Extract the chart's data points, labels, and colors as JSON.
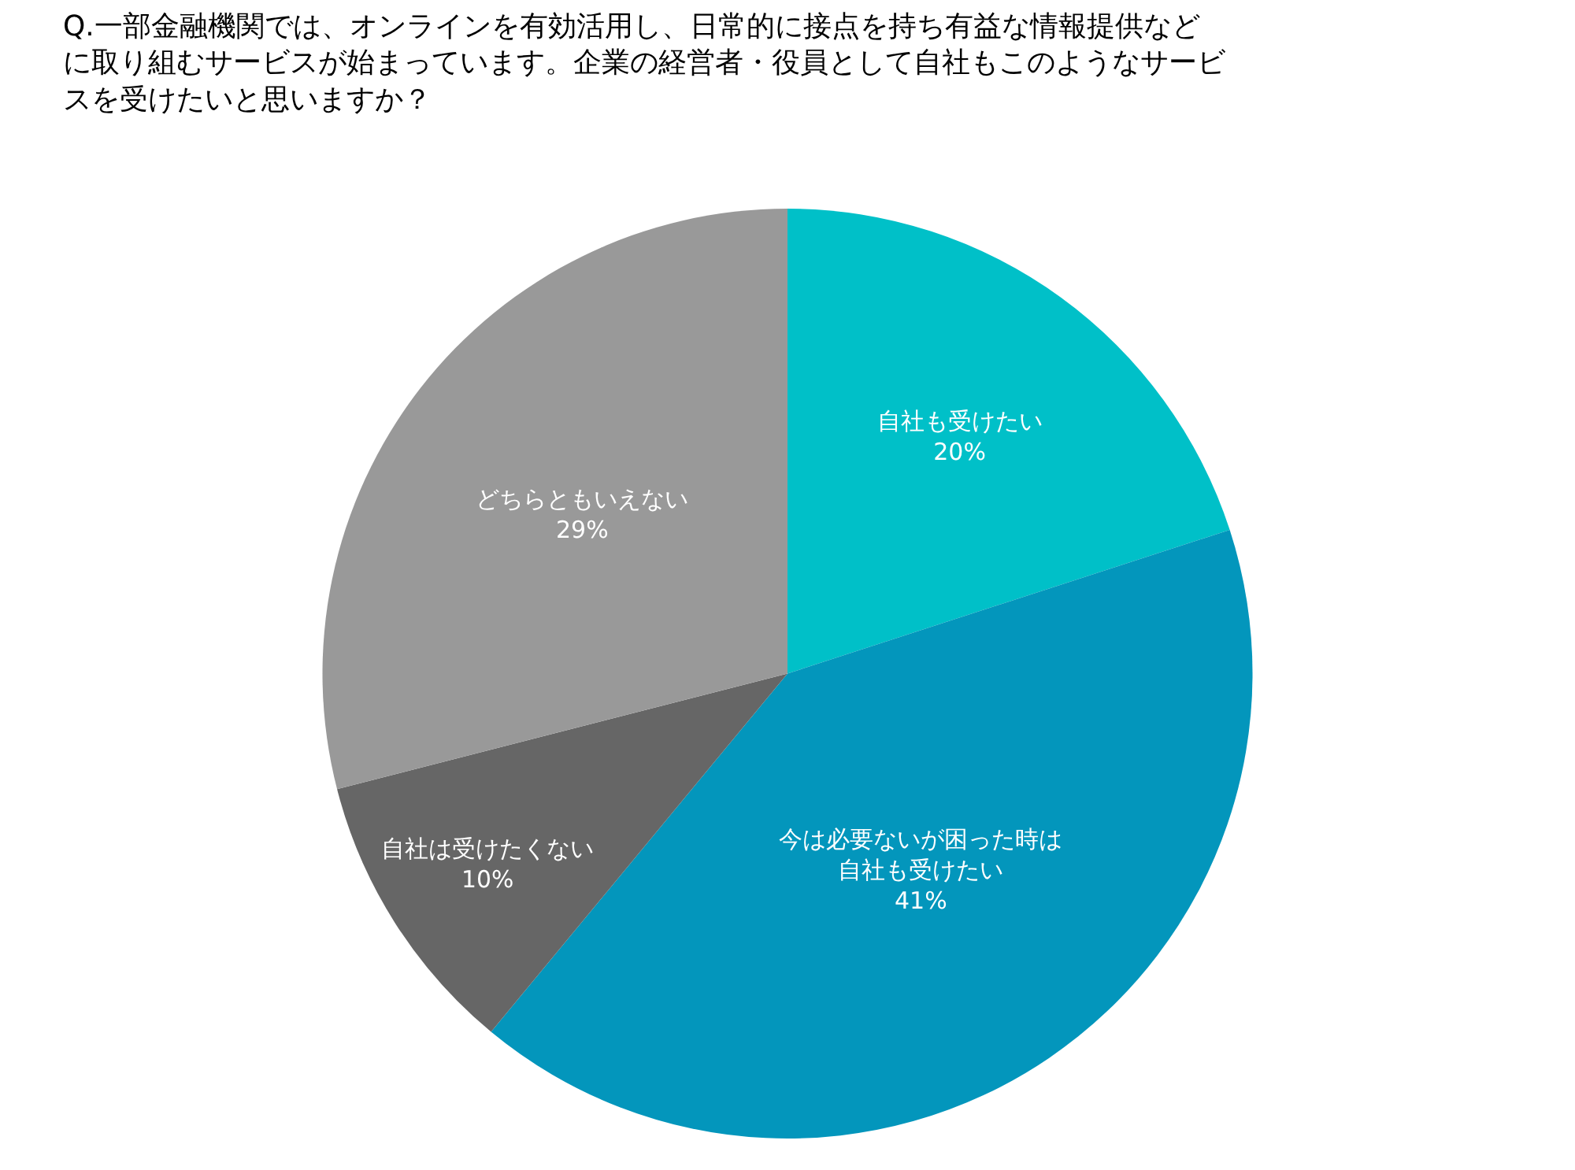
{
  "chart_data": {
    "type": "pie",
    "title": "Q.一部金融機関では、オンラインを有効活用し、日常的に接点を持ち有益な情報提供などに取り組むサービスが始まっています。企業の経営者・役員として自社もこのようなサービスを受けたいと思いますか？",
    "categories": [
      "自社も受けたい",
      "今は必要ないが困った時は自社も受けたい",
      "自社は受けたくない",
      "どちらともいえない"
    ],
    "values": [
      20,
      41,
      10,
      29
    ],
    "colors": [
      "#00c0c8",
      "#0396bc",
      "#666666",
      "#999999"
    ],
    "value_labels": [
      "20%",
      "41%",
      "10%",
      "29%"
    ],
    "legend": false
  }
}
